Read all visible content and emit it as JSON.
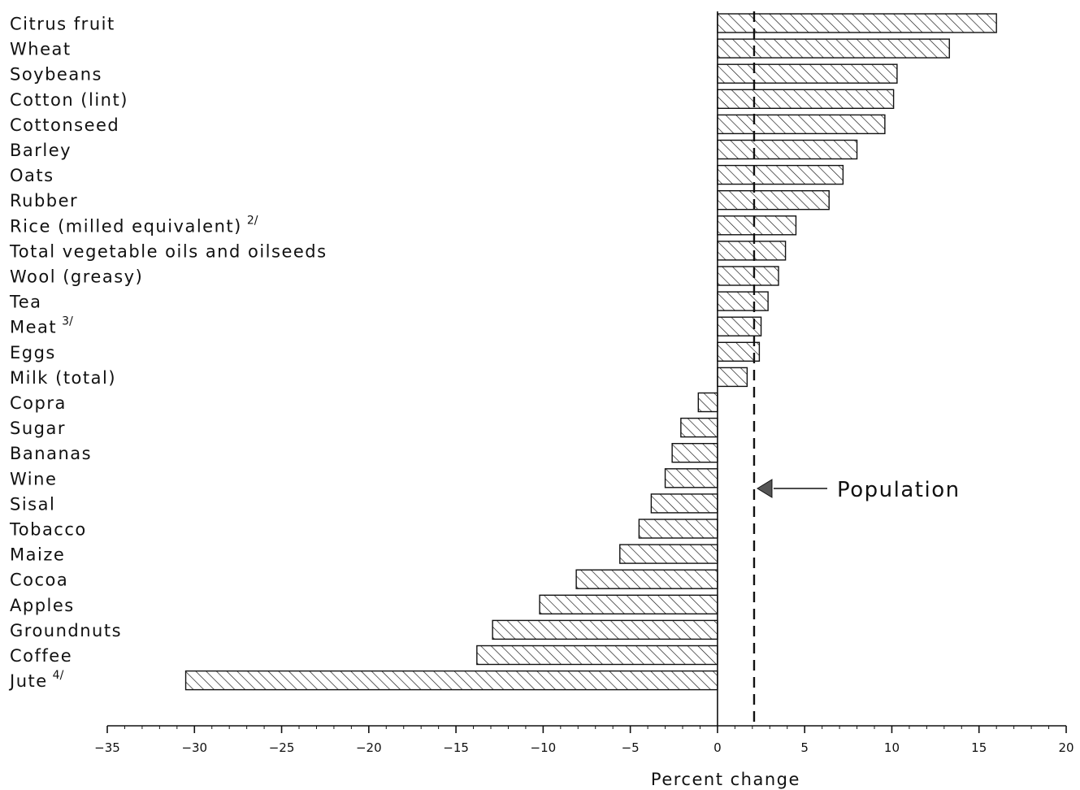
{
  "chart_data": {
    "type": "bar",
    "orientation": "horizontal",
    "categories": [
      "Citrus fruit",
      "Wheat",
      "Soybeans",
      "Cotton (lint)",
      "Cottonseed",
      "Barley",
      "Oats",
      "Rubber",
      "Rice (milled equivalent)",
      "Total vegetable oils and oilseeds",
      "Wool (greasy)",
      "Tea",
      "Meat",
      "Eggs",
      "Milk (total)",
      "Copra",
      "Sugar",
      "Bananas",
      "Wine",
      "Sisal",
      "Tobacco",
      "Maize",
      "Cocoa",
      "Apples",
      "Groundnuts",
      "Coffee",
      "Jute"
    ],
    "footnotes": {
      "Rice (milled equivalent)": "2/",
      "Meat": "3/",
      "Jute": "4/"
    },
    "values": [
      16,
      13.3,
      10.3,
      10.1,
      9.6,
      8,
      7.2,
      6.4,
      4.5,
      3.9,
      3.5,
      2.9,
      2.5,
      2.4,
      1.7,
      -1.1,
      -2.1,
      -2.6,
      -3,
      -3.8,
      -4.5,
      -5.6,
      -8.1,
      -10.2,
      -12.9,
      -13.8,
      -30.5
    ],
    "title": "",
    "xlabel": "Percent change",
    "ylabel": "",
    "xlim": [
      -35,
      20
    ],
    "xticks": [
      -35,
      -30,
      -25,
      -20,
      -15,
      -10,
      -5,
      0,
      5,
      10,
      15,
      20
    ],
    "xtick_labels": [
      "−35",
      "−30",
      "−25",
      "−20",
      "−15",
      "−10",
      "−5",
      "0",
      "5",
      "10",
      "15",
      "20"
    ],
    "reference_line": {
      "value": 2.1,
      "label": "Population",
      "style": "dashed"
    },
    "bar_fill": "hatched",
    "grid": false,
    "legend": "none",
    "colors": {
      "ink": "#111111",
      "background": "#ffffff"
    }
  }
}
